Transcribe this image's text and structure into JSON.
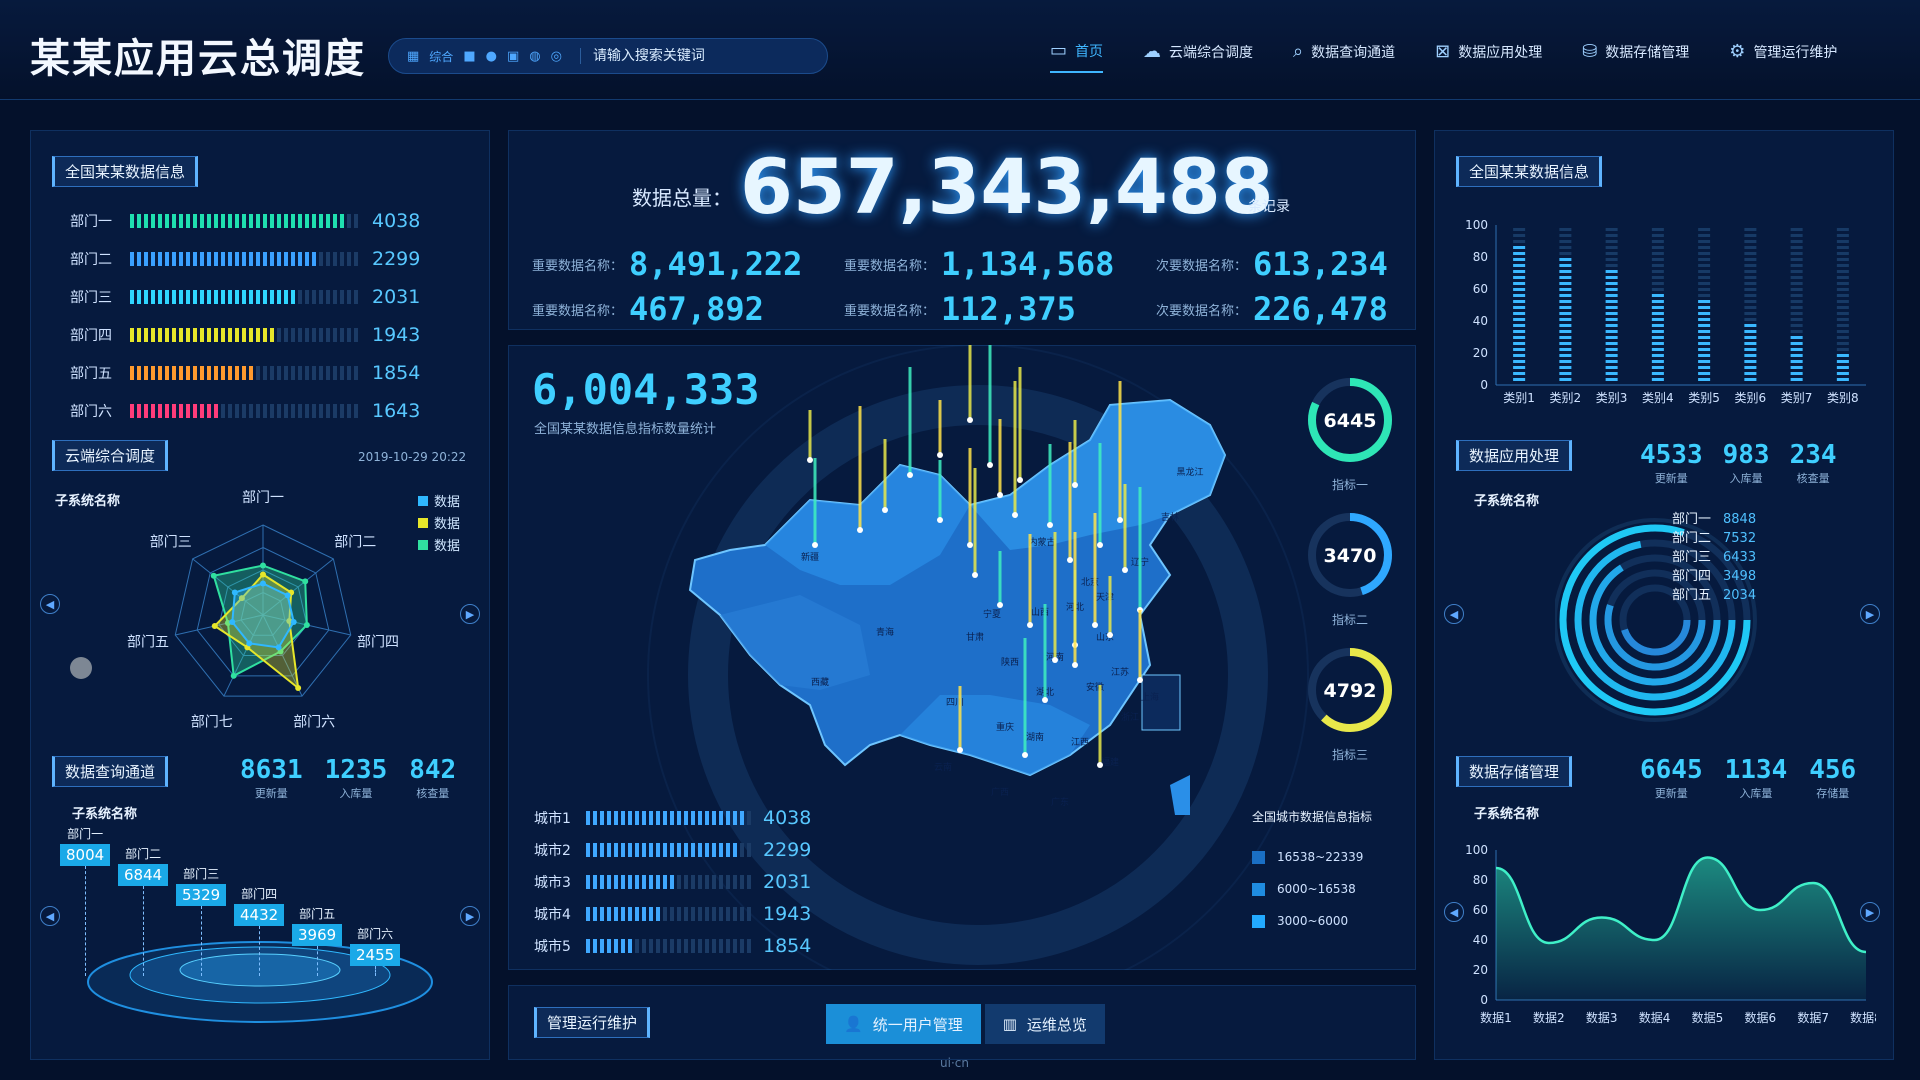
{
  "header": {
    "title": "某某应用云总调度",
    "search_categories": [
      "综合"
    ],
    "search_placeholder": "请输入搜索关键词",
    "nav": [
      {
        "label": "首页",
        "icon": "monitor-icon",
        "active": true
      },
      {
        "label": "云端综合调度",
        "icon": "cloud-icon"
      },
      {
        "label": "数据查询通道",
        "icon": "search-doc-icon"
      },
      {
        "label": "数据应用处理",
        "icon": "process-icon"
      },
      {
        "label": "数据存储管理",
        "icon": "storage-icon"
      },
      {
        "label": "管理运行维护",
        "icon": "gear-icon"
      }
    ]
  },
  "left_top": {
    "title": "全国某某数据信息",
    "rows": [
      {
        "label": "部门一",
        "value": 4038,
        "fill": 0.93,
        "color": "#1fe0b0"
      },
      {
        "label": "部门二",
        "value": 2299,
        "fill": 0.82,
        "color": "#3aa0ff"
      },
      {
        "label": "部门三",
        "value": 2031,
        "fill": 0.74,
        "color": "#2fd6ff"
      },
      {
        "label": "部门四",
        "value": 1943,
        "fill": 0.65,
        "color": "#e6e62a"
      },
      {
        "label": "部门五",
        "value": 1854,
        "fill": 0.56,
        "color": "#ff9a2e"
      },
      {
        "label": "部门六",
        "value": 1643,
        "fill": 0.39,
        "color": "#ff3c7a"
      }
    ]
  },
  "radar": {
    "title": "云端综合调度",
    "timestamp": "2019-10-29 20:22",
    "subtitle": "子系统名称",
    "axes": [
      "部门一",
      "部门二",
      "部门四",
      "部门六",
      "部门七",
      "部门五",
      "部门三"
    ],
    "legend": [
      {
        "label": "数据",
        "color": "#2fb8ff"
      },
      {
        "label": "数据",
        "color": "#e6e62a"
      },
      {
        "label": "数据",
        "color": "#30e0a0"
      }
    ],
    "chart_data": {
      "type": "radar",
      "categories": [
        "部门一",
        "部门二",
        "部门四",
        "部门六",
        "部门七",
        "部门五",
        "部门三"
      ],
      "series": [
        {
          "values": [
            0.55,
            0.6,
            0.5,
            0.45,
            0.75,
            0.4,
            0.7
          ],
          "color": "#30e0a0"
        },
        {
          "values": [
            0.45,
            0.4,
            0.3,
            0.9,
            0.4,
            0.55,
            0.3
          ],
          "color": "#e6e62a"
        },
        {
          "values": [
            0.35,
            0.35,
            0.35,
            0.4,
            0.35,
            0.35,
            0.4
          ],
          "color": "#2fb8ff"
        }
      ]
    }
  },
  "query": {
    "title": "数据查询通道",
    "subtitle": "子系统名称",
    "metrics": [
      {
        "value": "8631",
        "label": "更新量"
      },
      {
        "value": "1235",
        "label": "入库量"
      },
      {
        "value": "842",
        "label": "核查量"
      }
    ],
    "tags": [
      {
        "label": "部门一",
        "value": "8004"
      },
      {
        "label": "部门二",
        "value": "6844"
      },
      {
        "label": "部门三",
        "value": "5329"
      },
      {
        "label": "部门四",
        "value": "4432"
      },
      {
        "label": "部门五",
        "value": "3969"
      },
      {
        "label": "部门六",
        "value": "2455"
      }
    ]
  },
  "center": {
    "total_label": "数据总量：",
    "total": "657,343,488",
    "total_unit": "条记录",
    "stats": [
      {
        "label": "重要数据名称：",
        "value": "8,491,222"
      },
      {
        "label": "重要数据名称：",
        "value": "1,134,568"
      },
      {
        "label": "次要数据名称：",
        "value": "613,234"
      },
      {
        "label": "重要数据名称：",
        "value": "467,892"
      },
      {
        "label": "重要数据名称：",
        "value": "112,375"
      },
      {
        "label": "次要数据名称：",
        "value": "226,478"
      }
    ],
    "map_value": "6,004,333",
    "map_caption": "全国某某数据信息指标数量统计",
    "provinces": [
      "新疆",
      "西藏",
      "青海",
      "甘肃",
      "宁夏",
      "四川",
      "云南",
      "重庆",
      "湖北",
      "湖南",
      "广西",
      "广东",
      "福建",
      "江西",
      "安徽",
      "江苏",
      "浙江",
      "山东",
      "河南",
      "河北",
      "山西",
      "陕西",
      "内蒙古",
      "辽宁",
      "吉林",
      "黑龙江",
      "北京",
      "天津",
      "上海"
    ],
    "gauges": [
      {
        "value": "6445",
        "label": "指标一",
        "ratio": 0.82,
        "color": "#2ee6b6"
      },
      {
        "value": "3470",
        "label": "指标二",
        "ratio": 0.45,
        "color": "#2fa8ff"
      },
      {
        "value": "4792",
        "label": "指标三",
        "ratio": 0.62,
        "color": "#e8e84a"
      }
    ],
    "cities": [
      {
        "label": "城市1",
        "value": 4038,
        "fill": 0.95
      },
      {
        "label": "城市2",
        "value": 2299,
        "fill": 0.9
      },
      {
        "label": "城市3",
        "value": 2031,
        "fill": 0.55
      },
      {
        "label": "城市4",
        "value": 1943,
        "fill": 0.45
      },
      {
        "label": "城市5",
        "value": 1854,
        "fill": 0.3
      }
    ],
    "map_legend": {
      "title": "全国城市数据信息指标",
      "items": [
        {
          "label": "16538~22339",
          "color": "#1a6fc4"
        },
        {
          "label": "6000~16538",
          "color": "#1f8ce0"
        },
        {
          "label": "3000~6000",
          "color": "#22aaff"
        }
      ]
    }
  },
  "bottom": {
    "title": "管理运行维护",
    "buttons": [
      {
        "label": "统一用户管理",
        "icon": "user-icon",
        "active": true
      },
      {
        "label": "运维总览",
        "icon": "overview-icon"
      }
    ],
    "watermark": "ui·cn"
  },
  "right_top": {
    "title": "全国某某数据信息",
    "chart_data": {
      "type": "bar",
      "categories": [
        "类别1",
        "类别2",
        "类别3",
        "类别4",
        "类别5",
        "类别6",
        "类别7",
        "类别8"
      ],
      "values": [
        88,
        78,
        72,
        56,
        52,
        40,
        30,
        20
      ],
      "ylim": [
        0,
        100
      ],
      "yticks": [
        0,
        20,
        40,
        60,
        80,
        100
      ]
    }
  },
  "app_process": {
    "title": "数据应用处理",
    "subtitle": "子系统名称",
    "metrics": [
      {
        "value": "4533",
        "label": "更新量"
      },
      {
        "value": "983",
        "label": "入库量"
      },
      {
        "value": "234",
        "label": "核查量"
      }
    ],
    "rings": [
      {
        "label": "部门一",
        "value": "8848",
        "ratio": 0.8
      },
      {
        "label": "部门二",
        "value": "7532",
        "ratio": 0.72
      },
      {
        "label": "部门三",
        "value": "6433",
        "ratio": 0.66
      },
      {
        "label": "部门四",
        "value": "3498",
        "ratio": 0.55
      },
      {
        "label": "部门五",
        "value": "2034",
        "ratio": 0.45
      }
    ]
  },
  "storage": {
    "title": "数据存储管理",
    "subtitle": "子系统名称",
    "metrics": [
      {
        "value": "6645",
        "label": "更新量"
      },
      {
        "value": "1134",
        "label": "入库量"
      },
      {
        "value": "456",
        "label": "存储量"
      }
    ],
    "chart_data": {
      "type": "area",
      "categories": [
        "数据1",
        "数据2",
        "数据3",
        "数据4",
        "数据5",
        "数据6",
        "数据7",
        "数据8"
      ],
      "values": [
        88,
        38,
        55,
        40,
        95,
        60,
        78,
        32
      ],
      "ylim": [
        0,
        100
      ],
      "yticks": [
        0,
        20,
        40,
        60,
        80,
        100
      ]
    }
  }
}
